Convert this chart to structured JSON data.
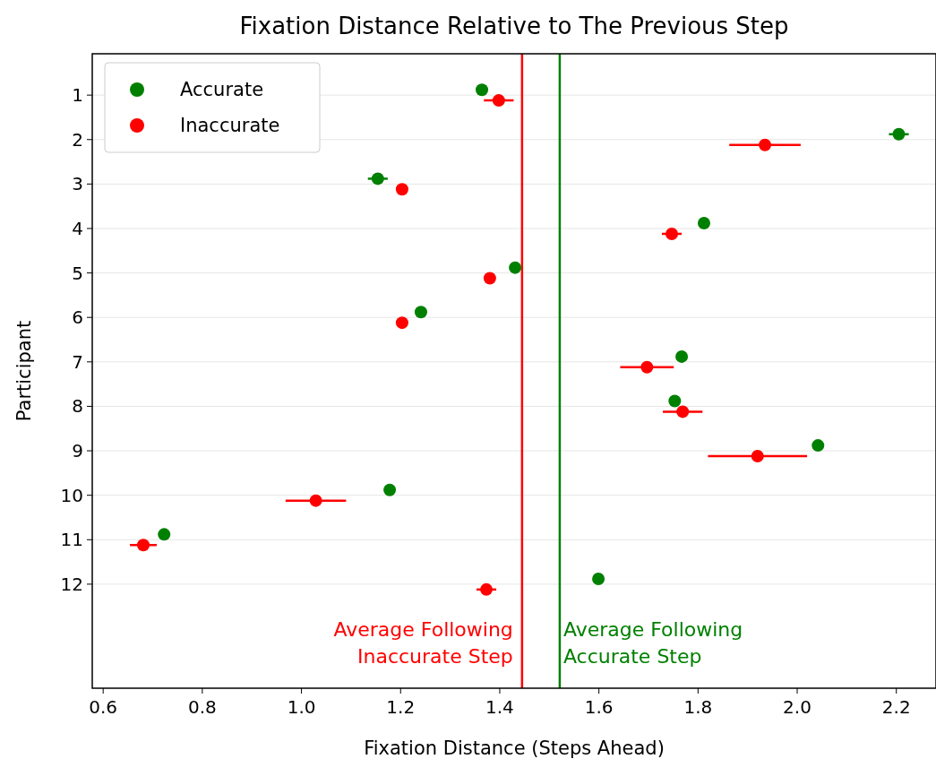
{
  "chart_data": {
    "type": "scatter",
    "orientation": "horizontal",
    "title": "Fixation Distance Relative to The Previous Step",
    "xlabel": "Fixation Distance (Steps Ahead)",
    "ylabel": "Participant",
    "categories": [
      "1",
      "2",
      "3",
      "4",
      "5",
      "6",
      "7",
      "8",
      "9",
      "10",
      "11",
      "12"
    ],
    "series": [
      {
        "name": "Accurate",
        "color": "#008000",
        "values": [
          1.364,
          2.205,
          1.154,
          1.812,
          1.431,
          1.241,
          1.767,
          1.753,
          2.042,
          1.178,
          0.723,
          1.599
        ],
        "errors": [
          null,
          0.02,
          0.02,
          null,
          null,
          null,
          null,
          null,
          null,
          null,
          null,
          null
        ]
      },
      {
        "name": "Inaccurate",
        "color": "#ff0000",
        "values": [
          1.398,
          1.935,
          1.203,
          1.747,
          1.38,
          1.203,
          1.697,
          1.769,
          1.92,
          1.029,
          0.681,
          1.373
        ],
        "errors": [
          0.03,
          0.072,
          null,
          0.02,
          null,
          null,
          0.054,
          0.04,
          0.1,
          0.061,
          0.027,
          0.02
        ]
      }
    ],
    "xlim": [
      0.578,
      2.28
    ],
    "xticks": [
      {
        "value": 0.6,
        "label": "0.6"
      },
      {
        "value": 0.8,
        "label": "0.8"
      },
      {
        "value": 1.0,
        "label": "1.0"
      },
      {
        "value": 1.2,
        "label": "1.2"
      },
      {
        "value": 1.4,
        "label": "1.4"
      },
      {
        "value": 1.6,
        "label": "1.6"
      },
      {
        "value": 1.8,
        "label": "1.8"
      },
      {
        "value": 2.0,
        "label": "2.0"
      },
      {
        "value": 2.2,
        "label": "2.2"
      }
    ],
    "ref_lines": [
      {
        "axis": "x",
        "value": 1.445,
        "label": "Average Following\nInaccurate Step",
        "color": "#ff0000"
      },
      {
        "axis": "x",
        "value": 1.521,
        "label": "Average Following\nAccurate Step",
        "color": "#008000"
      }
    ],
    "grid": "y",
    "legend": "top left",
    "marker": "circle"
  }
}
